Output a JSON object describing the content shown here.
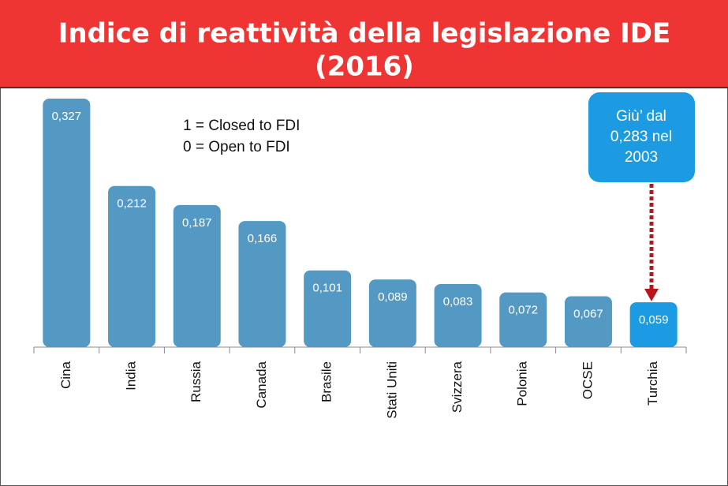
{
  "chart_data": {
    "type": "bar",
    "title": [
      "Indice di reattività della legislazione IDE",
      "(2016)"
    ],
    "annotations": [
      "1 = Closed to FDI",
      "0 = Open to FDI"
    ],
    "callout": [
      "Giù’ dal",
      "0,283 nel",
      "2003"
    ],
    "categories": [
      "Cina",
      "India",
      "Russia",
      "Canada",
      "Brasile",
      "Stati Uniti",
      "Svizzera",
      "Polonia",
      "OCSE",
      "Turchia"
    ],
    "values": [
      0.327,
      0.212,
      0.187,
      0.166,
      0.101,
      0.089,
      0.083,
      0.072,
      0.067,
      0.059
    ],
    "value_labels": [
      "0,327",
      "0,212",
      "0,187",
      "0,166",
      "0,101",
      "0,089",
      "0,083",
      "0,072",
      "0,067",
      "0,059"
    ],
    "colors": [
      "#5499c4",
      "#5499c4",
      "#5499c4",
      "#5499c4",
      "#5499c4",
      "#5499c4",
      "#5499c4",
      "#5499c4",
      "#5499c4",
      "#1d9be2"
    ]
  }
}
